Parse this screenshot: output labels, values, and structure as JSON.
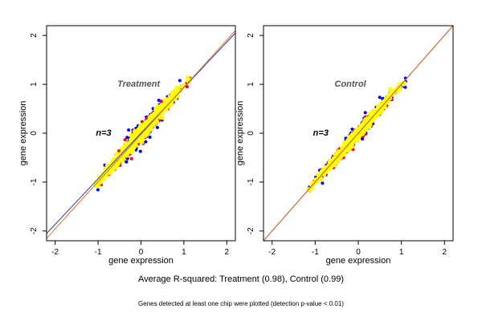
{
  "colors": {
    "fit_blue": "#2d3fbf",
    "fit_red": "#e06c26",
    "point_blue": "#0000ff",
    "point_red": "#ff0000",
    "point_yellow": "#ffff00"
  },
  "captions": {
    "r_squared": "Average R-squared: Treatment (0.98), Control (0.99)",
    "footnote": "Genes detected at least one chip were plotted (detection p-value < 0.01)"
  },
  "chart_data": [
    {
      "type": "scatter",
      "title": "Treatment",
      "annotation": "n=3",
      "xlabel": "gene expression",
      "ylabel": "gene expression",
      "xlim": [
        -2.2,
        2.2
      ],
      "ylim": [
        -2.2,
        2.2
      ],
      "xticks": [
        -2,
        -1,
        0,
        1,
        2
      ],
      "yticks": [
        -2,
        -1,
        0,
        1,
        2
      ],
      "r_squared": 0.98,
      "lines": [
        {
          "name": "blue fit",
          "color": "#2d3fbf",
          "x": [
            -2.2,
            2.2
          ],
          "y": [
            -2.05,
            2.05
          ]
        },
        {
          "name": "red fit",
          "color": "#e06c26",
          "x": [
            -2.2,
            2.2
          ],
          "y": [
            -2.15,
            2.1
          ]
        }
      ],
      "clouds": [
        {
          "color": "blue",
          "x_range": [
            -1.05,
            1.2
          ],
          "spread": 0.2
        },
        {
          "color": "red",
          "x_range": [
            -1.05,
            1.15
          ],
          "spread": 0.16
        },
        {
          "color": "yellow",
          "x_range": [
            -1.05,
            1.1
          ],
          "spread": 0.12
        }
      ]
    },
    {
      "type": "scatter",
      "title": "Control",
      "annotation": "n=3",
      "xlabel": "gene expression",
      "ylabel": "gene expression",
      "xlim": [
        -2.2,
        2.2
      ],
      "ylim": [
        -2.2,
        2.2
      ],
      "xticks": [
        -2,
        -1,
        0,
        1,
        2
      ],
      "yticks": [
        -2,
        -1,
        0,
        1,
        2
      ],
      "r_squared": 0.99,
      "lines": [
        {
          "name": "blue fit",
          "color": "#2d3fbf",
          "x": [
            -2.2,
            2.2
          ],
          "y": [
            -2.2,
            2.2
          ]
        },
        {
          "name": "red fit",
          "color": "#e06c26",
          "x": [
            -2.2,
            2.2
          ],
          "y": [
            -2.2,
            2.2
          ]
        }
      ],
      "clouds": [
        {
          "color": "blue",
          "x_range": [
            -1.15,
            1.15
          ],
          "spread": 0.14
        },
        {
          "color": "red",
          "x_range": [
            -1.15,
            1.15
          ],
          "spread": 0.12
        },
        {
          "color": "yellow",
          "x_range": [
            -1.15,
            1.05
          ],
          "spread": 0.09
        }
      ]
    }
  ]
}
